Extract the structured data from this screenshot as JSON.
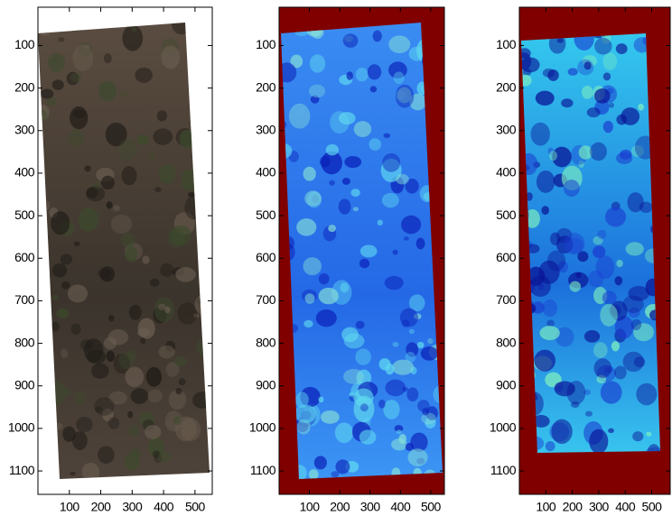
{
  "chart_data": [
    {
      "type": "image",
      "xlim": [
        0,
        555
      ],
      "ylim": [
        10,
        1155
      ],
      "xticks": [
        100,
        200,
        300,
        400,
        500
      ],
      "yticks": [
        100,
        200,
        300,
        400,
        500,
        600,
        700,
        800,
        900,
        1000,
        1100
      ]
    },
    {
      "type": "image",
      "xlim": [
        0,
        545
      ],
      "ylim": [
        10,
        1155
      ],
      "xticks": [
        100,
        200,
        300,
        400,
        500
      ],
      "yticks": [
        100,
        200,
        300,
        400,
        500,
        600,
        700,
        800,
        900,
        1000,
        1100
      ]
    },
    {
      "type": "image",
      "xlim": [
        0,
        570
      ],
      "ylim": [
        10,
        1155
      ],
      "xticks": [
        100,
        200,
        300,
        400,
        500
      ],
      "yticks": [
        100,
        200,
        300,
        400,
        500,
        600,
        700,
        800,
        900,
        1000,
        1100
      ]
    }
  ]
}
